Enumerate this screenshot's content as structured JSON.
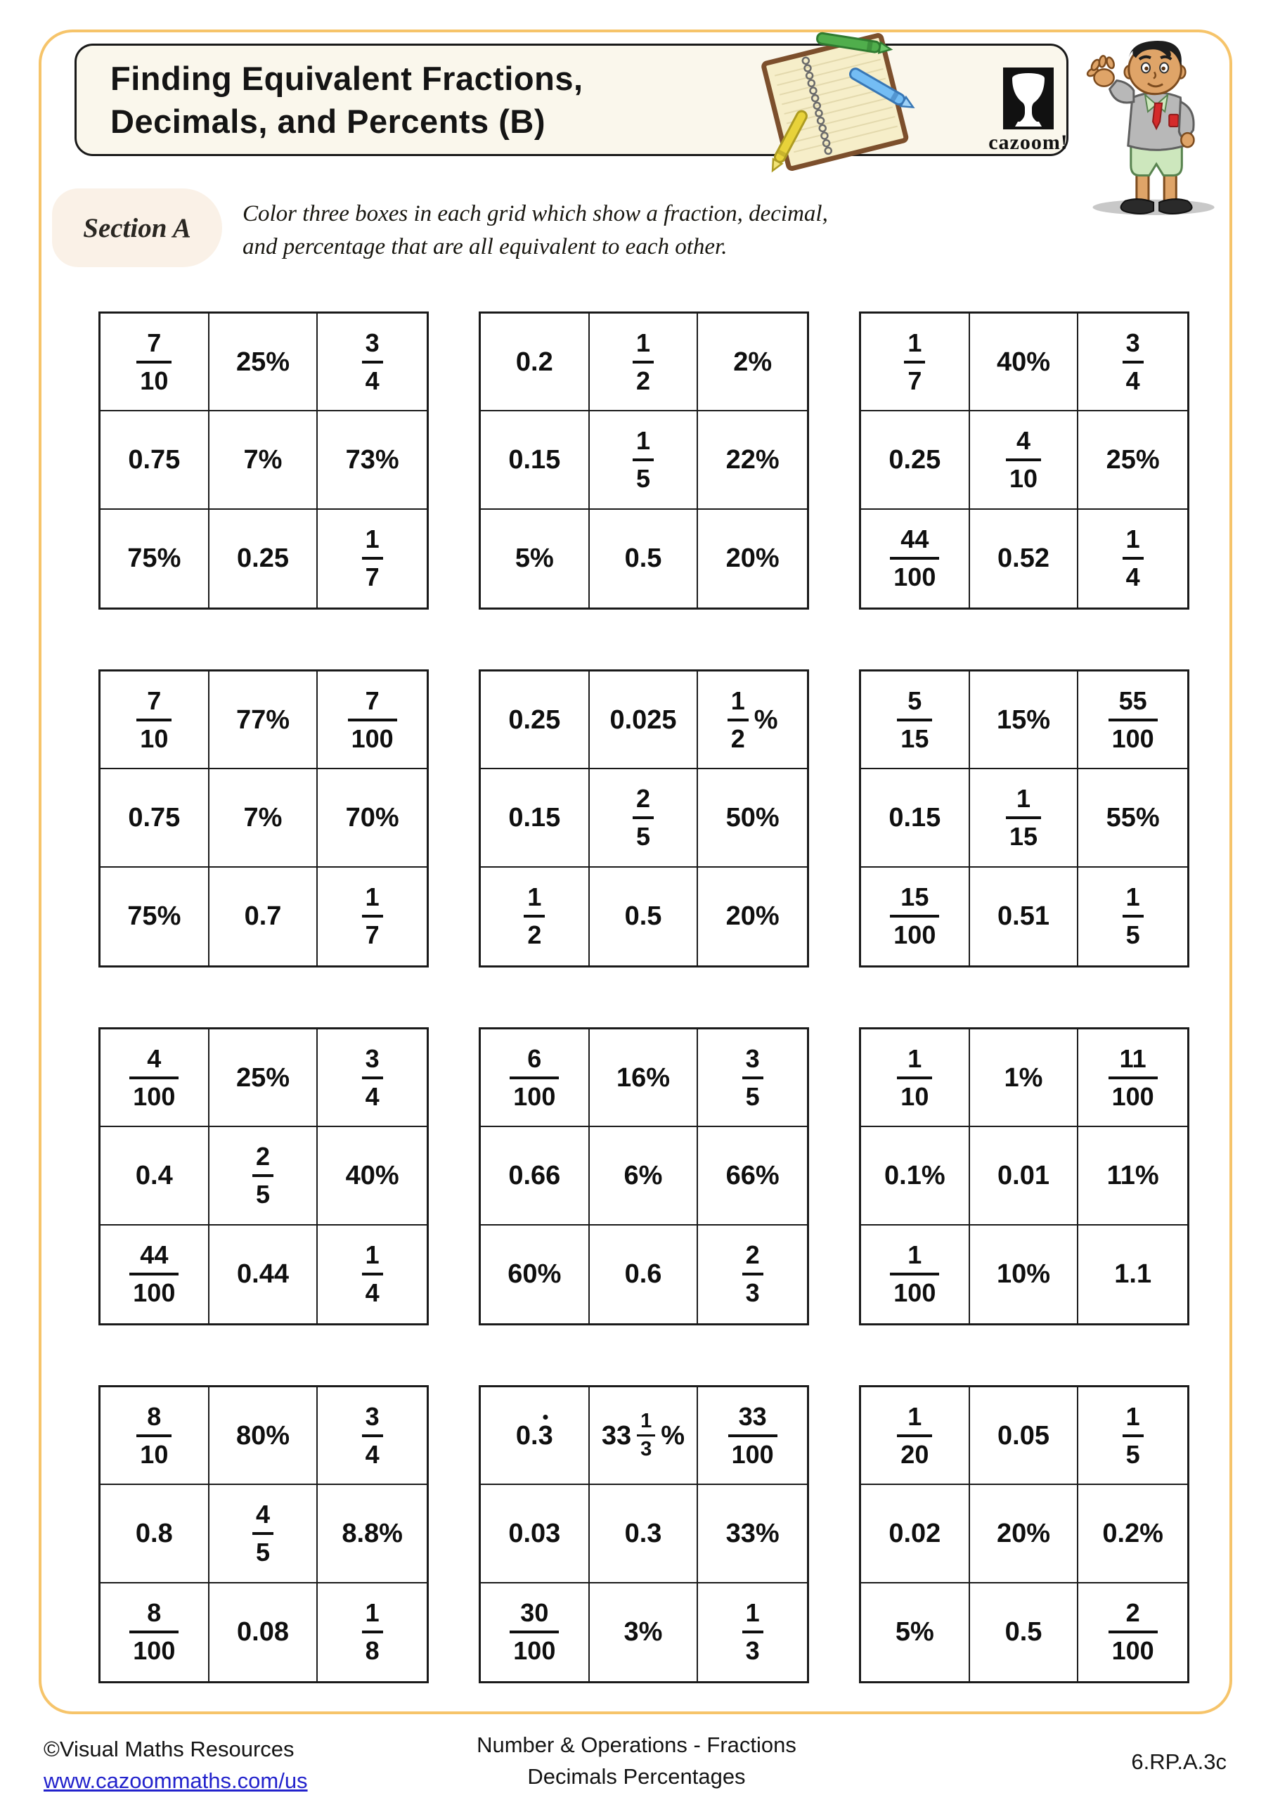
{
  "header": {
    "title_line1": "Finding Equivalent Fractions,",
    "title_line2": "Decimals, and Percents (B)",
    "logo_text": "cazoom!"
  },
  "section": {
    "label": "Section A",
    "instruction_line1": "Color three boxes in each grid which show a fraction, decimal,",
    "instruction_line2": "and percentage that are all equivalent to each other."
  },
  "grids": [
    {
      "cells": [
        [
          {
            "t": "f",
            "n": "7",
            "d": "10"
          },
          {
            "t": "x",
            "v": "25%"
          },
          {
            "t": "f",
            "n": "3",
            "d": "4"
          }
        ],
        [
          {
            "t": "x",
            "v": "0.75"
          },
          {
            "t": "x",
            "v": "7%"
          },
          {
            "t": "x",
            "v": "73%"
          }
        ],
        [
          {
            "t": "x",
            "v": "75%"
          },
          {
            "t": "x",
            "v": "0.25"
          },
          {
            "t": "f",
            "n": "1",
            "d": "7"
          }
        ]
      ]
    },
    {
      "cells": [
        [
          {
            "t": "x",
            "v": "0.2"
          },
          {
            "t": "f",
            "n": "1",
            "d": "2"
          },
          {
            "t": "x",
            "v": "2%"
          }
        ],
        [
          {
            "t": "x",
            "v": "0.15"
          },
          {
            "t": "f",
            "n": "1",
            "d": "5"
          },
          {
            "t": "x",
            "v": "22%"
          }
        ],
        [
          {
            "t": "x",
            "v": "5%"
          },
          {
            "t": "x",
            "v": "0.5"
          },
          {
            "t": "x",
            "v": "20%"
          }
        ]
      ]
    },
    {
      "cells": [
        [
          {
            "t": "f",
            "n": "1",
            "d": "7"
          },
          {
            "t": "x",
            "v": "40%"
          },
          {
            "t": "f",
            "n": "3",
            "d": "4"
          }
        ],
        [
          {
            "t": "x",
            "v": "0.25"
          },
          {
            "t": "f",
            "n": "4",
            "d": "10"
          },
          {
            "t": "x",
            "v": "25%"
          }
        ],
        [
          {
            "t": "f",
            "n": "44",
            "d": "100"
          },
          {
            "t": "x",
            "v": "0.52"
          },
          {
            "t": "f",
            "n": "1",
            "d": "4"
          }
        ]
      ]
    },
    {
      "cells": [
        [
          {
            "t": "f",
            "n": "7",
            "d": "10"
          },
          {
            "t": "x",
            "v": "77%"
          },
          {
            "t": "f",
            "n": "7",
            "d": "100"
          }
        ],
        [
          {
            "t": "x",
            "v": "0.75"
          },
          {
            "t": "x",
            "v": "7%"
          },
          {
            "t": "x",
            "v": "70%"
          }
        ],
        [
          {
            "t": "x",
            "v": "75%"
          },
          {
            "t": "x",
            "v": "0.7"
          },
          {
            "t": "f",
            "n": "1",
            "d": "7"
          }
        ]
      ]
    },
    {
      "cells": [
        [
          {
            "t": "x",
            "v": "0.25"
          },
          {
            "t": "x",
            "v": "0.025"
          },
          {
            "t": "fp",
            "n": "1",
            "d": "2",
            "s": "%"
          }
        ],
        [
          {
            "t": "x",
            "v": "0.15"
          },
          {
            "t": "f",
            "n": "2",
            "d": "5"
          },
          {
            "t": "x",
            "v": "50%"
          }
        ],
        [
          {
            "t": "f",
            "n": "1",
            "d": "2"
          },
          {
            "t": "x",
            "v": "0.5"
          },
          {
            "t": "x",
            "v": "20%"
          }
        ]
      ]
    },
    {
      "cells": [
        [
          {
            "t": "f",
            "n": "5",
            "d": "15"
          },
          {
            "t": "x",
            "v": "15%"
          },
          {
            "t": "f",
            "n": "55",
            "d": "100"
          }
        ],
        [
          {
            "t": "x",
            "v": "0.15"
          },
          {
            "t": "f",
            "n": "1",
            "d": "15"
          },
          {
            "t": "x",
            "v": "55%"
          }
        ],
        [
          {
            "t": "f",
            "n": "15",
            "d": "100"
          },
          {
            "t": "x",
            "v": "0.51"
          },
          {
            "t": "f",
            "n": "1",
            "d": "5"
          }
        ]
      ]
    },
    {
      "cells": [
        [
          {
            "t": "f",
            "n": "4",
            "d": "100"
          },
          {
            "t": "x",
            "v": "25%"
          },
          {
            "t": "f",
            "n": "3",
            "d": "4"
          }
        ],
        [
          {
            "t": "x",
            "v": "0.4"
          },
          {
            "t": "f",
            "n": "2",
            "d": "5"
          },
          {
            "t": "x",
            "v": "40%"
          }
        ],
        [
          {
            "t": "f",
            "n": "44",
            "d": "100"
          },
          {
            "t": "x",
            "v": "0.44"
          },
          {
            "t": "f",
            "n": "1",
            "d": "4"
          }
        ]
      ]
    },
    {
      "cells": [
        [
          {
            "t": "f",
            "n": "6",
            "d": "100"
          },
          {
            "t": "x",
            "v": "16%"
          },
          {
            "t": "f",
            "n": "3",
            "d": "5"
          }
        ],
        [
          {
            "t": "x",
            "v": "0.66"
          },
          {
            "t": "x",
            "v": "6%"
          },
          {
            "t": "x",
            "v": "66%"
          }
        ],
        [
          {
            "t": "x",
            "v": "60%"
          },
          {
            "t": "x",
            "v": "0.6"
          },
          {
            "t": "f",
            "n": "2",
            "d": "3"
          }
        ]
      ]
    },
    {
      "cells": [
        [
          {
            "t": "f",
            "n": "1",
            "d": "10"
          },
          {
            "t": "x",
            "v": "1%"
          },
          {
            "t": "f",
            "n": "11",
            "d": "100"
          }
        ],
        [
          {
            "t": "x",
            "v": "0.1%"
          },
          {
            "t": "x",
            "v": "0.01"
          },
          {
            "t": "x",
            "v": "11%"
          }
        ],
        [
          {
            "t": "f",
            "n": "1",
            "d": "100"
          },
          {
            "t": "x",
            "v": "10%"
          },
          {
            "t": "x",
            "v": "1.1"
          }
        ]
      ]
    },
    {
      "cells": [
        [
          {
            "t": "f",
            "n": "8",
            "d": "10"
          },
          {
            "t": "x",
            "v": "80%"
          },
          {
            "t": "f",
            "n": "3",
            "d": "4"
          }
        ],
        [
          {
            "t": "x",
            "v": "0.8"
          },
          {
            "t": "f",
            "n": "4",
            "d": "5"
          },
          {
            "t": "x",
            "v": "8.8%"
          }
        ],
        [
          {
            "t": "f",
            "n": "8",
            "d": "100"
          },
          {
            "t": "x",
            "v": "0.08"
          },
          {
            "t": "f",
            "n": "1",
            "d": "8"
          }
        ]
      ]
    },
    {
      "cells": [
        [
          {
            "t": "dx",
            "pre": "0.",
            "dot": "3"
          },
          {
            "t": "mf",
            "w": "33",
            "n": "1",
            "d": "3",
            "s": "%"
          },
          {
            "t": "f",
            "n": "33",
            "d": "100"
          }
        ],
        [
          {
            "t": "x",
            "v": "0.03"
          },
          {
            "t": "x",
            "v": "0.3"
          },
          {
            "t": "x",
            "v": "33%"
          }
        ],
        [
          {
            "t": "f",
            "n": "30",
            "d": "100"
          },
          {
            "t": "x",
            "v": "3%"
          },
          {
            "t": "f",
            "n": "1",
            "d": "3"
          }
        ]
      ]
    },
    {
      "cells": [
        [
          {
            "t": "f",
            "n": "1",
            "d": "20"
          },
          {
            "t": "x",
            "v": "0.05"
          },
          {
            "t": "f",
            "n": "1",
            "d": "5"
          }
        ],
        [
          {
            "t": "x",
            "v": "0.02"
          },
          {
            "t": "x",
            "v": "20%"
          },
          {
            "t": "x",
            "v": "0.2%"
          }
        ],
        [
          {
            "t": "x",
            "v": "5%"
          },
          {
            "t": "x",
            "v": "0.5"
          },
          {
            "t": "f",
            "n": "2",
            "d": "100"
          }
        ]
      ]
    }
  ],
  "footer": {
    "copyright": "©Visual Maths Resources",
    "url": "www.cazoommaths.com/us",
    "center_line1": "Number & Operations - Fractions",
    "center_line2": "Decimals Percentages",
    "standard_code": "6.RP.A.3c"
  },
  "colors": {
    "frame_border": "#f6c46a",
    "title_box_bg": "#faf7ec",
    "section_pill_bg": "#faf1e7",
    "link_blue": "#2222cc",
    "text_black": "#141414"
  }
}
